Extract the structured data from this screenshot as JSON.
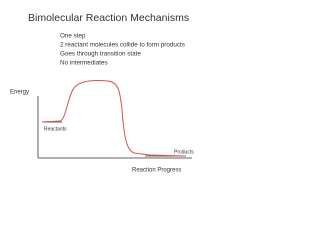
{
  "title": "Bimolecular Reaction Mechanisms",
  "bullets": [
    "One step",
    "2 reactant molecules collide to form products",
    "Goes through transition state",
    "No intermediates"
  ],
  "diagram": {
    "y_axis_label": "Energy",
    "x_axis_label": "Reaction Progress",
    "reactants_label": "Reactants",
    "products_label": "Products"
  }
}
